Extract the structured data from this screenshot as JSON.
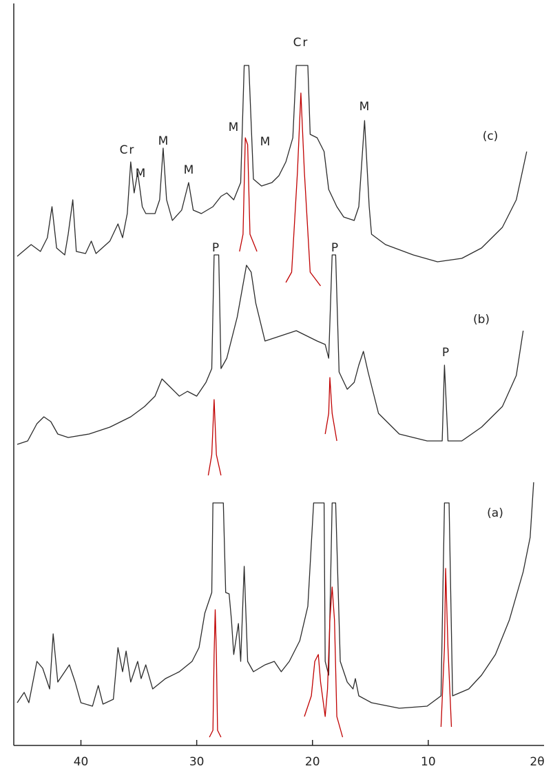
{
  "chart_data": {
    "type": "line",
    "xlim": [
      45.8,
      0
    ],
    "ylim": [
      0,
      1080
    ],
    "xticks": [
      40,
      30,
      20,
      10
    ],
    "xlabel": "2θ",
    "annotations": [
      "Cr",
      "M",
      "M",
      "M",
      "M",
      "M",
      "Cr",
      "M",
      "P",
      "P",
      "P"
    ],
    "series": [
      {
        "name": "(c)",
        "color": "#2a2a2a",
        "x": [
          45.5,
          44.3,
          43.5,
          42.9,
          42.5,
          42.1,
          41.4,
          41.1,
          40.7,
          40.4,
          39.6,
          39.1,
          38.7,
          37.5,
          36.8,
          36.4,
          36.0,
          35.7,
          35.4,
          35.1,
          34.9,
          34.7,
          34.4,
          33.6,
          33.2,
          32.9,
          32.6,
          32.1,
          31.3,
          30.7,
          30.3,
          29.6,
          28.6,
          27.9,
          27.4,
          26.8,
          26.2,
          25.9,
          25.5,
          25.1,
          24.4,
          23.5,
          22.9,
          22.3,
          21.7,
          21.4,
          20.4,
          20.2,
          19.6,
          19.0,
          18.6,
          17.9,
          17.3,
          16.4,
          16.0,
          15.5,
          15.1,
          14.9,
          13.7,
          11.3,
          9.2,
          7.1,
          5.4,
          3.6,
          2.4,
          1.5
        ],
        "values": [
          708,
          725,
          715,
          735,
          780,
          720,
          710,
          740,
          790,
          715,
          712,
          730,
          712,
          730,
          755,
          735,
          770,
          845,
          800,
          830,
          805,
          780,
          770,
          770,
          790,
          865,
          790,
          760,
          775,
          815,
          775,
          770,
          780,
          795,
          800,
          790,
          815,
          985,
          985,
          820,
          810,
          815,
          825,
          845,
          880,
          985,
          985,
          885,
          880,
          860,
          805,
          780,
          765,
          760,
          780,
          905,
          780,
          740,
          725,
          710,
          700,
          705,
          720,
          750,
          790,
          860
        ]
      },
      {
        "name": "(b)",
        "color": "#2a2a2a",
        "x": [
          45.5,
          44.6,
          43.8,
          43.2,
          42.6,
          42.0,
          41.1,
          39.3,
          37.5,
          35.7,
          34.5,
          33.6,
          33.0,
          32.4,
          31.5,
          30.8,
          30.0,
          29.2,
          28.7,
          28.5,
          28.1,
          27.9,
          27.4,
          26.5,
          25.7,
          25.3,
          24.9,
          24.1,
          23.2,
          21.4,
          20.8,
          19.6,
          18.9,
          18.6,
          18.3,
          18.0,
          17.7,
          17.0,
          16.4,
          16.0,
          15.6,
          15.2,
          14.3,
          12.5,
          10.1,
          8.8,
          8.6,
          8.3,
          7.1,
          5.4,
          3.6,
          2.4,
          1.8
        ],
        "values": [
          435,
          440,
          465,
          475,
          468,
          450,
          445,
          450,
          460,
          475,
          490,
          505,
          530,
          520,
          505,
          512,
          505,
          525,
          545,
          710,
          710,
          545,
          560,
          620,
          695,
          685,
          640,
          585,
          590,
          600,
          595,
          585,
          580,
          560,
          710,
          710,
          540,
          515,
          525,
          550,
          570,
          540,
          480,
          450,
          440,
          440,
          550,
          440,
          440,
          460,
          490,
          535,
          600
        ]
      },
      {
        "name": "(a)",
        "color": "#2a2a2a",
        "x": [
          45.5,
          44.9,
          44.5,
          43.8,
          43.3,
          42.7,
          42.4,
          42.0,
          41.4,
          41.0,
          40.5,
          40.0,
          39.0,
          38.5,
          38.1,
          37.2,
          36.8,
          36.4,
          36.1,
          35.7,
          35.1,
          34.8,
          34.4,
          33.8,
          32.7,
          31.5,
          30.4,
          29.8,
          29.3,
          28.7,
          28.6,
          27.7,
          27.5,
          27.2,
          27.0,
          26.8,
          26.4,
          26.2,
          25.9,
          25.6,
          25.1,
          24.6,
          24.1,
          23.3,
          22.7,
          22.0,
          21.1,
          20.4,
          19.9,
          19.0,
          18.9,
          18.6,
          18.3,
          18.0,
          17.6,
          17.0,
          16.5,
          16.3,
          16.0,
          14.9,
          12.5,
          10.1,
          8.9,
          8.6,
          8.2,
          7.9,
          6.5,
          5.4,
          4.2,
          3.0,
          1.8,
          1.2,
          0.9
        ],
        "values": [
          60,
          75,
          60,
          120,
          110,
          80,
          160,
          90,
          105,
          115,
          90,
          60,
          55,
          85,
          58,
          65,
          140,
          105,
          135,
          90,
          120,
          95,
          115,
          80,
          95,
          105,
          120,
          140,
          190,
          220,
          350,
          350,
          220,
          218,
          180,
          130,
          175,
          120,
          258,
          120,
          105,
          110,
          115,
          120,
          105,
          120,
          150,
          200,
          350,
          350,
          120,
          100,
          350,
          350,
          120,
          90,
          80,
          95,
          70,
          60,
          52,
          55,
          70,
          350,
          350,
          70,
          80,
          100,
          130,
          180,
          250,
          300,
          380
        ]
      },
      {
        "color": "#c00000",
        "x": [
          26.3,
          26.0,
          25.8,
          25.6,
          25.4,
          24.8
        ],
        "values": [
          715,
          740,
          880,
          870,
          740,
          715
        ]
      },
      {
        "color": "#c00000",
        "x": [
          22.3,
          21.8,
          21.3,
          21.0,
          20.7,
          20.2,
          19.3
        ],
        "values": [
          670,
          685,
          830,
          945,
          830,
          685,
          665
        ]
      },
      {
        "color": "#c00000",
        "x": [
          29.0,
          28.7,
          28.5,
          28.3,
          27.9
        ],
        "values": [
          390,
          420,
          500,
          420,
          390
        ]
      },
      {
        "color": "#c00000",
        "x": [
          18.9,
          18.6,
          18.5,
          18.3,
          17.9
        ],
        "values": [
          450,
          480,
          532,
          480,
          440
        ]
      },
      {
        "color": "#c00000",
        "x": [
          28.9,
          28.6,
          28.5,
          28.4,
          28.3,
          28.2,
          27.9
        ],
        "values": [
          10,
          20,
          130,
          195,
          130,
          20,
          10
        ]
      },
      {
        "color": "#c00000",
        "x": [
          20.7,
          20.1,
          19.8,
          19.5,
          19.3,
          18.9,
          18.7,
          18.5,
          18.3,
          18.1,
          17.9,
          17.4
        ],
        "values": [
          40,
          70,
          120,
          130,
          90,
          40,
          80,
          180,
          228,
          180,
          40,
          10
        ]
      },
      {
        "color": "#c00000",
        "x": [
          8.9,
          8.6,
          8.5,
          8.3,
          8.0
        ],
        "values": [
          25,
          140,
          255,
          140,
          25
        ]
      }
    ]
  }
}
